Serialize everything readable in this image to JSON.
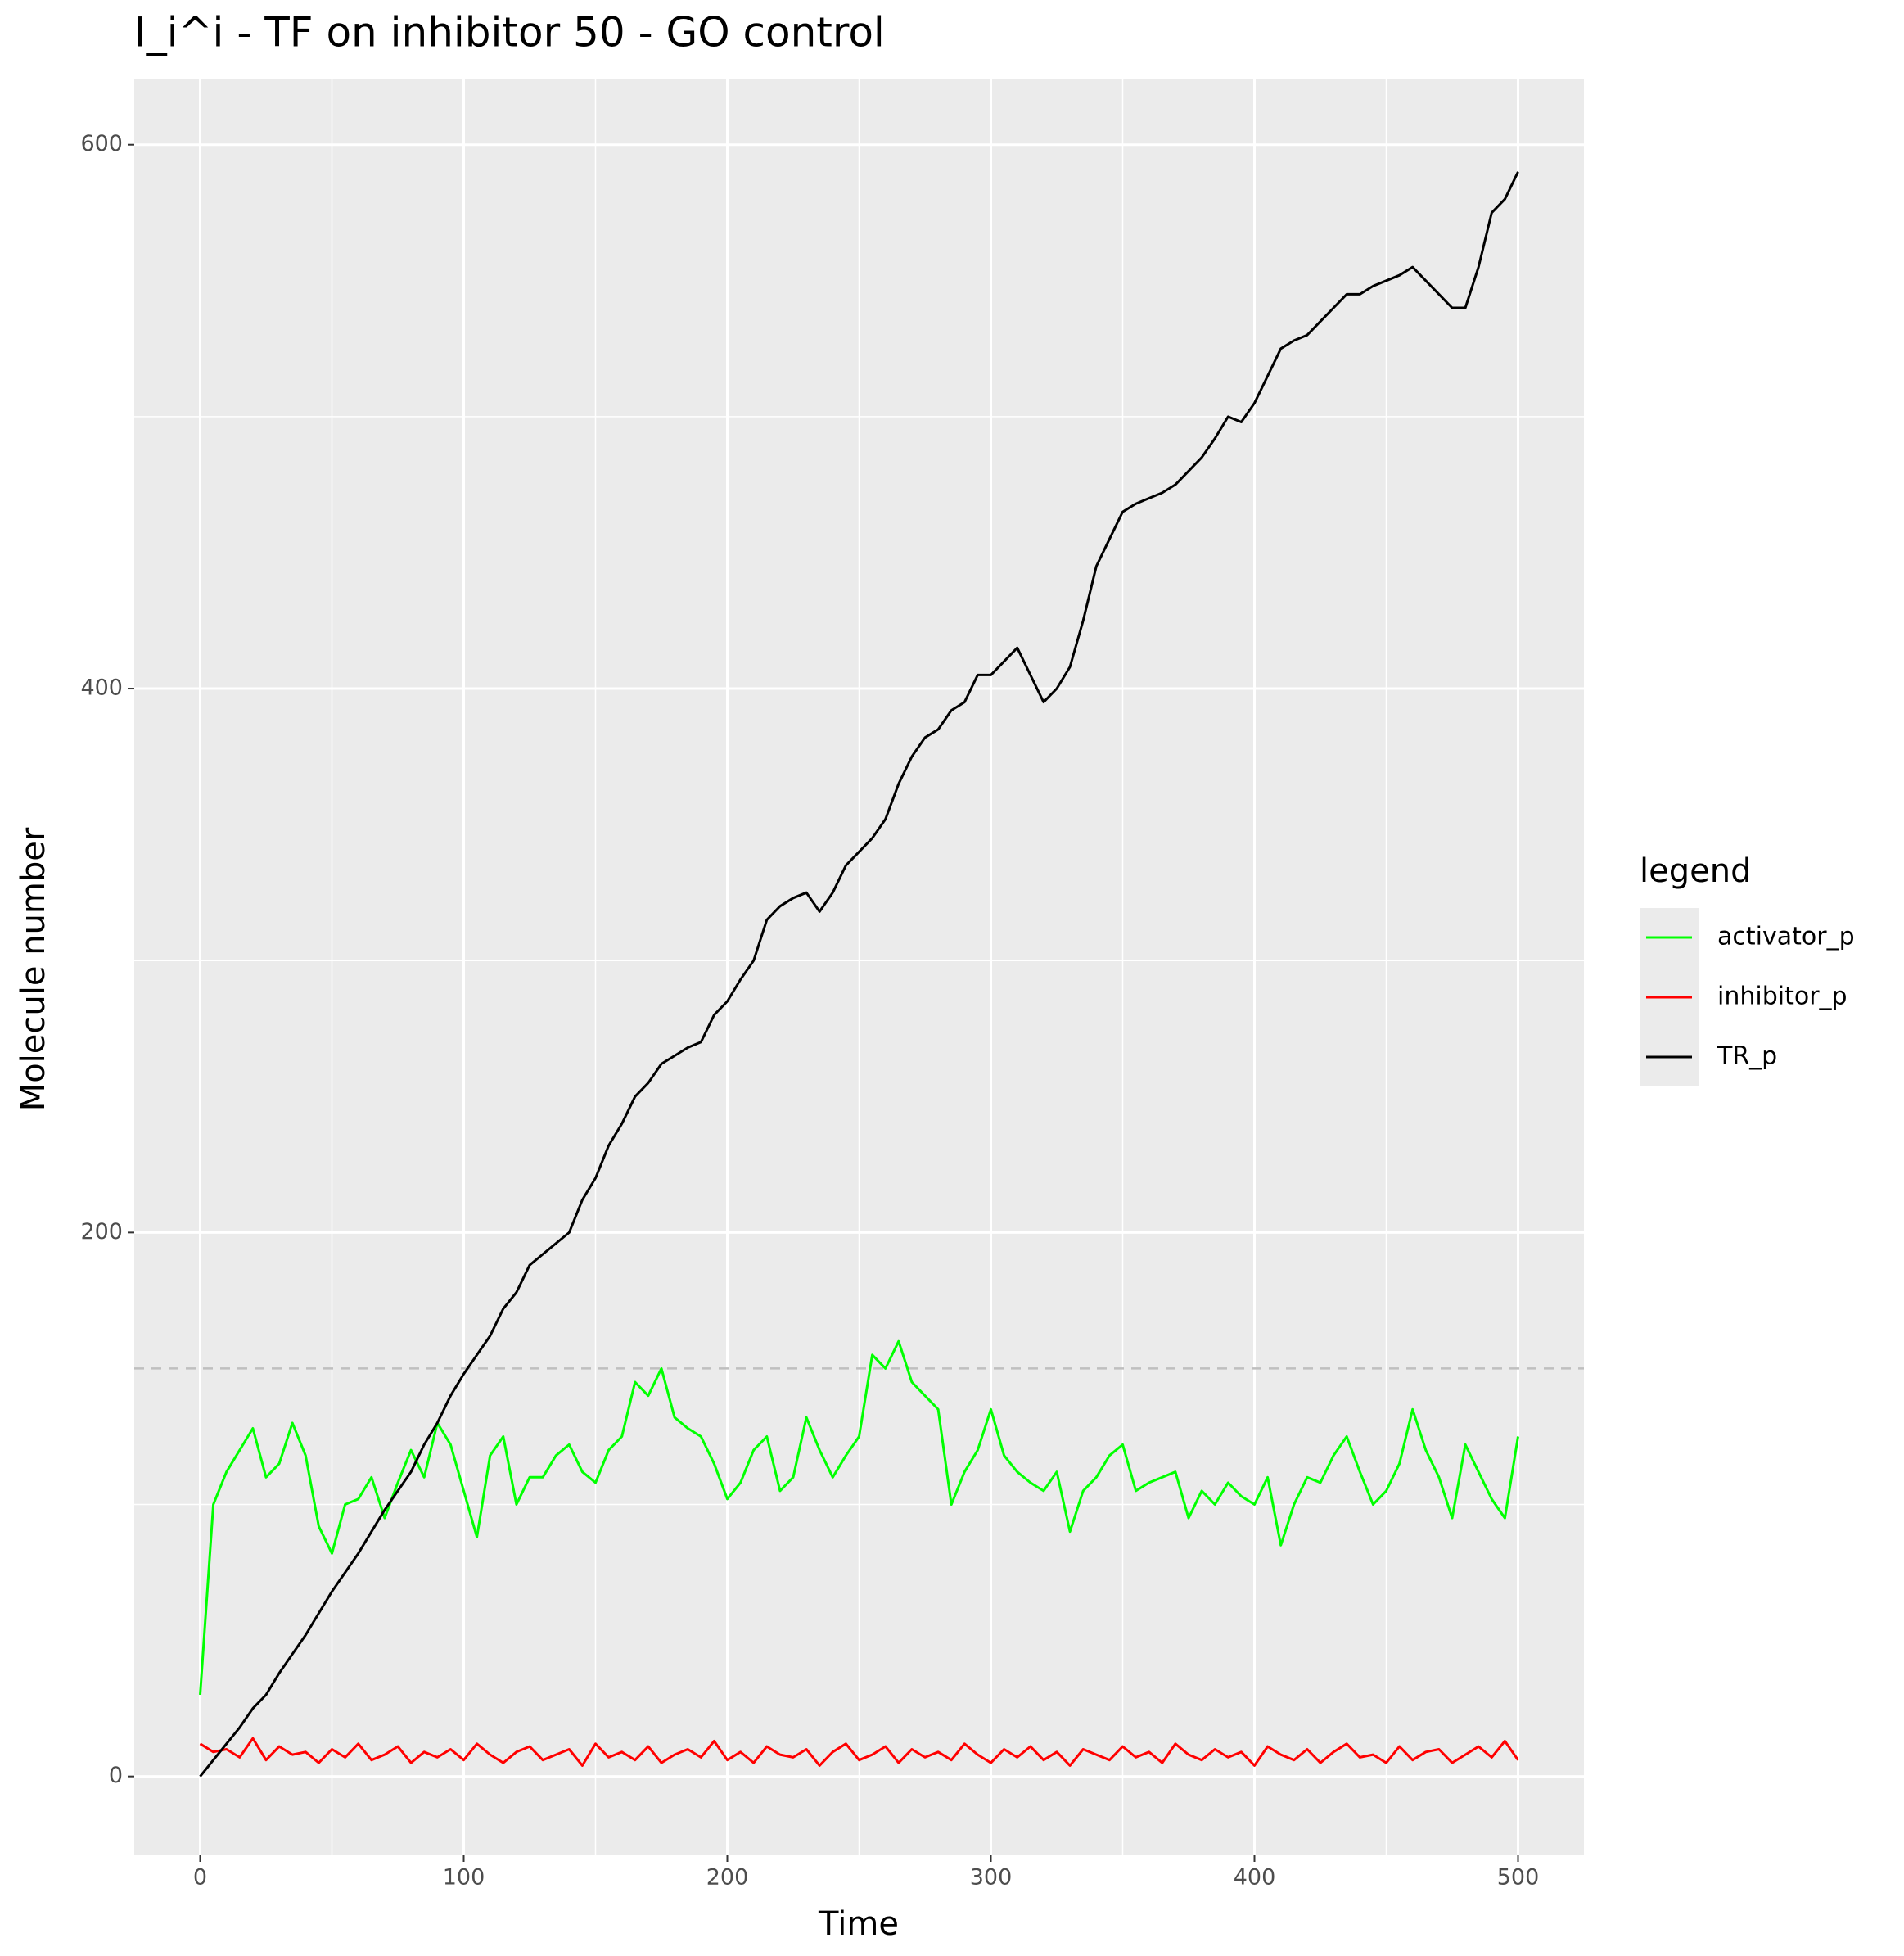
{
  "chart_data": {
    "type": "line",
    "title": "I_i^i - TF on inhibitor 50 - GO control",
    "x_label": "Time",
    "y_label": "Molecule number",
    "legend_title": "legend",
    "legend_position": "right",
    "xlim": [
      -25,
      525
    ],
    "ylim": [
      -29,
      624
    ],
    "xticks": [
      0,
      100,
      200,
      300,
      400,
      500
    ],
    "yticks": [
      0,
      200,
      400,
      600
    ],
    "xminor_ticks": [
      50,
      150,
      250,
      350,
      450
    ],
    "yminor_ticks": [
      100,
      300,
      500
    ],
    "grid": true,
    "hline": 150,
    "x": [
      0,
      5,
      10,
      15,
      20,
      25,
      30,
      35,
      40,
      45,
      50,
      55,
      60,
      65,
      70,
      75,
      80,
      85,
      90,
      95,
      100,
      105,
      110,
      115,
      120,
      125,
      130,
      135,
      140,
      145,
      150,
      155,
      160,
      165,
      170,
      175,
      180,
      185,
      190,
      195,
      200,
      205,
      210,
      215,
      220,
      225,
      230,
      235,
      240,
      245,
      250,
      255,
      260,
      265,
      270,
      275,
      280,
      285,
      290,
      295,
      300,
      305,
      310,
      315,
      320,
      325,
      330,
      335,
      340,
      345,
      350,
      355,
      360,
      365,
      370,
      375,
      380,
      385,
      390,
      395,
      400,
      405,
      410,
      415,
      420,
      425,
      430,
      435,
      440,
      445,
      450,
      455,
      460,
      465,
      470,
      475,
      480,
      485,
      490,
      495,
      500
    ],
    "series": [
      {
        "name": "activator_p",
        "color": "#00ff00",
        "values": [
          30,
          100,
          112,
          120,
          128,
          110,
          115,
          130,
          118,
          92,
          82,
          100,
          102,
          110,
          95,
          108,
          120,
          110,
          130,
          122,
          105,
          88,
          118,
          125,
          100,
          110,
          110,
          118,
          122,
          112,
          108,
          120,
          125,
          145,
          140,
          150,
          132,
          128,
          125,
          115,
          102,
          108,
          120,
          125,
          105,
          110,
          132,
          120,
          110,
          118,
          125,
          155,
          150,
          160,
          145,
          140,
          135,
          100,
          112,
          120,
          135,
          118,
          112,
          108,
          105,
          112,
          90,
          105,
          110,
          118,
          122,
          105,
          108,
          110,
          112,
          95,
          105,
          100,
          108,
          103,
          100,
          110,
          85,
          100,
          110,
          108,
          118,
          125,
          112,
          100,
          105,
          115,
          135,
          120,
          110,
          95,
          122,
          112,
          102,
          95,
          125
        ]
      },
      {
        "name": "inhibitor_p",
        "color": "#ff0000",
        "values": [
          12,
          9,
          10,
          7,
          14,
          6,
          11,
          8,
          9,
          5,
          10,
          7,
          12,
          6,
          8,
          11,
          5,
          9,
          7,
          10,
          6,
          12,
          8,
          5,
          9,
          11,
          6,
          8,
          10,
          4,
          12,
          7,
          9,
          6,
          11,
          5,
          8,
          10,
          7,
          13,
          6,
          9,
          5,
          11,
          8,
          7,
          10,
          4,
          9,
          12,
          6,
          8,
          11,
          5,
          10,
          7,
          9,
          6,
          12,
          8,
          5,
          10,
          7,
          11,
          6,
          9,
          4,
          10,
          8,
          6,
          11,
          7,
          9,
          5,
          12,
          8,
          6,
          10,
          7,
          9,
          4,
          11,
          8,
          6,
          10,
          5,
          9,
          12,
          7,
          8,
          5,
          11,
          6,
          9,
          10,
          5,
          8,
          11,
          7,
          13,
          6
        ]
      },
      {
        "name": "TR_p",
        "color": "#000000",
        "values": [
          0,
          6,
          12,
          18,
          25,
          30,
          38,
          45,
          52,
          60,
          68,
          75,
          82,
          90,
          98,
          105,
          112,
          122,
          130,
          140,
          148,
          155,
          162,
          172,
          178,
          188,
          192,
          196,
          200,
          212,
          220,
          232,
          240,
          250,
          255,
          262,
          265,
          268,
          270,
          280,
          285,
          293,
          300,
          315,
          320,
          323,
          325,
          318,
          325,
          335,
          340,
          345,
          352,
          365,
          375,
          382,
          385,
          392,
          395,
          405,
          405,
          410,
          415,
          405,
          395,
          400,
          408,
          425,
          445,
          455,
          465,
          468,
          470,
          472,
          475,
          480,
          485,
          492,
          500,
          498,
          505,
          515,
          525,
          528,
          530,
          535,
          540,
          545,
          545,
          548,
          550,
          552,
          555,
          550,
          545,
          540,
          540,
          555,
          575,
          580,
          590
        ]
      }
    ]
  }
}
